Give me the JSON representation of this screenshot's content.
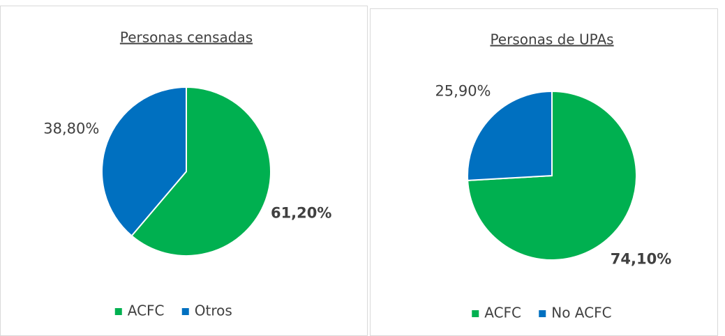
{
  "chart_data": [
    {
      "type": "pie",
      "title": "Personas censadas",
      "categories": [
        "ACFC",
        "Otros"
      ],
      "values": [
        61.2,
        38.8
      ],
      "value_labels": [
        "61,20%",
        "38,80%"
      ],
      "colors": [
        "#00b050",
        "#0070c0"
      ]
    },
    {
      "type": "pie",
      "title": "Personas de UPAs",
      "categories": [
        "ACFC",
        "No ACFC"
      ],
      "values": [
        74.1,
        25.9
      ],
      "value_labels": [
        "74,10%",
        "25,90%"
      ],
      "colors": [
        "#00b050",
        "#0070c0"
      ]
    }
  ]
}
